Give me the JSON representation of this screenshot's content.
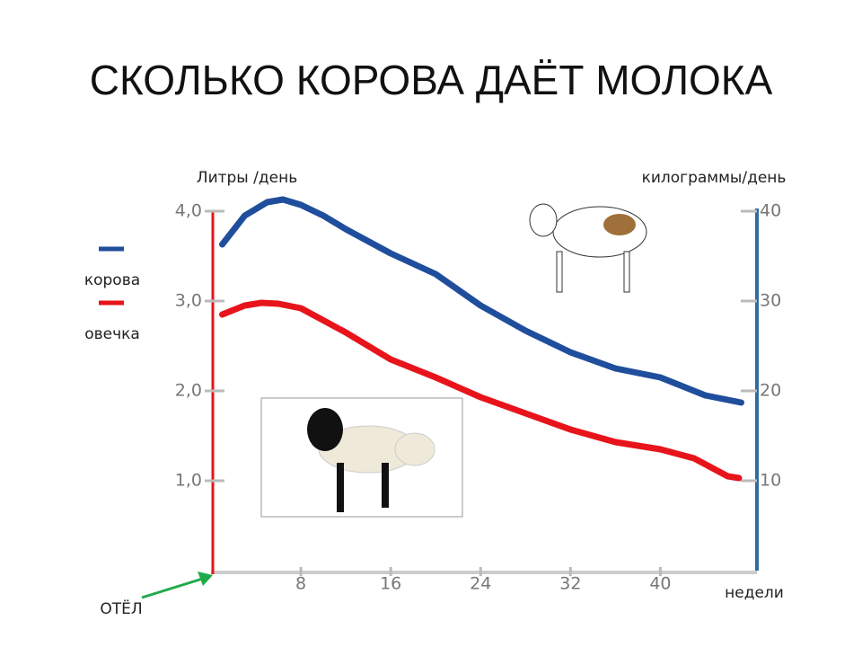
{
  "chart_data": {
    "type": "line",
    "title": "СКОЛЬКО КОРОВА ДАЁТ МОЛОКА",
    "y_label": "Литры /день",
    "y2_label": "килограммы/день",
    "x_label": "недели",
    "annotation": "ОТЁЛ",
    "xlim": [
      0,
      48.6
    ],
    "xticks": [
      8,
      16,
      24,
      32,
      40
    ],
    "ylim": [
      0,
      4
    ],
    "yticks": [
      {
        "value": 1,
        "label": "1,0"
      },
      {
        "value": 2,
        "label": "2,0"
      },
      {
        "value": 3,
        "label": "3,0"
      },
      {
        "value": 4,
        "label": "4,0"
      }
    ],
    "y2lim": [
      0,
      40
    ],
    "y2ticks": [
      10,
      20,
      30,
      40
    ],
    "legend": "left",
    "series": [
      {
        "name": "корова",
        "color": "#1f4e9c",
        "axis": "y2",
        "x": [
          1,
          3,
          5,
          6.4,
          8,
          10,
          12,
          16,
          20,
          24,
          28,
          32,
          36,
          40,
          44,
          47.2
        ],
        "values": [
          36.3,
          39.5,
          41,
          41.3,
          40.7,
          39.5,
          38,
          35.3,
          33,
          29.5,
          26.7,
          24.3,
          22.5,
          21.5,
          19.5,
          18.7
        ]
      },
      {
        "name": "овечка",
        "color": "#e8141b",
        "x": [
          1,
          3,
          4.5,
          6,
          8,
          12,
          16,
          20,
          24,
          28,
          32,
          36,
          40,
          43,
          46,
          47
        ],
        "values": [
          2.85,
          2.95,
          2.98,
          2.97,
          2.92,
          2.65,
          2.35,
          2.15,
          1.93,
          1.75,
          1.57,
          1.43,
          1.35,
          1.25,
          1.05,
          1.03
        ]
      }
    ]
  }
}
